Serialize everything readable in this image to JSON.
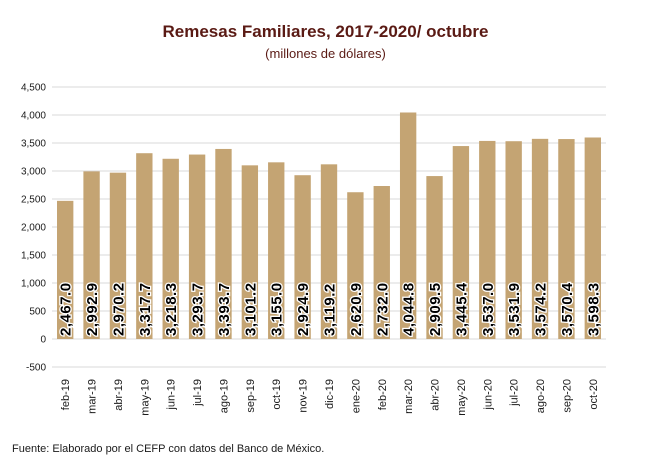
{
  "chart_data": {
    "type": "bar",
    "title": "Remesas Familiares, 2017-2020/  octubre",
    "subtitle": "(millones de dólares)",
    "categories": [
      "feb-19",
      "mar-19",
      "abr-19",
      "may-19",
      "jun-19",
      "jul-19",
      "ago-19",
      "sep-19",
      "oct-19",
      "nov-19",
      "dic-19",
      "ene-20",
      "feb-20",
      "mar-20",
      "abr-20",
      "may-20",
      "jun-20",
      "jul-20",
      "ago-20",
      "sep-20",
      "oct-20"
    ],
    "values": [
      2467.0,
      2992.9,
      2970.2,
      3317.7,
      3218.3,
      3293.7,
      3393.7,
      3101.2,
      3155.0,
      2924.9,
      3119.2,
      2620.9,
      2732.0,
      4044.8,
      2909.5,
      3445.4,
      3537.0,
      3531.9,
      3574.2,
      3570.4,
      3598.3
    ],
    "value_labels": [
      "2,467.0",
      "2,992.9",
      "2,970.2",
      "3,317.7",
      "3,218.3",
      "3,293.7",
      "3,393.7",
      "3,101.2",
      "3,155.0",
      "2,924.9",
      "3,119.2",
      "2,620.9",
      "2,732.0",
      "4,044.8",
      "2,909.5",
      "3,445.4",
      "3,537.0",
      "3,531.9",
      "3,574.2",
      "3,570.4",
      "3,598.3"
    ],
    "yticks": [
      "-500",
      "0",
      "500",
      "1,000",
      "1,500",
      "2,000",
      "2,500",
      "3,000",
      "3,500",
      "4,000",
      "4,500"
    ],
    "ylim": [
      -500,
      4500
    ],
    "grid": true,
    "bar_color": "#c4a473",
    "grid_color": "#d9d9d9"
  },
  "source": "Fuente: Elaborado por el CEFP con datos del Banco de México."
}
